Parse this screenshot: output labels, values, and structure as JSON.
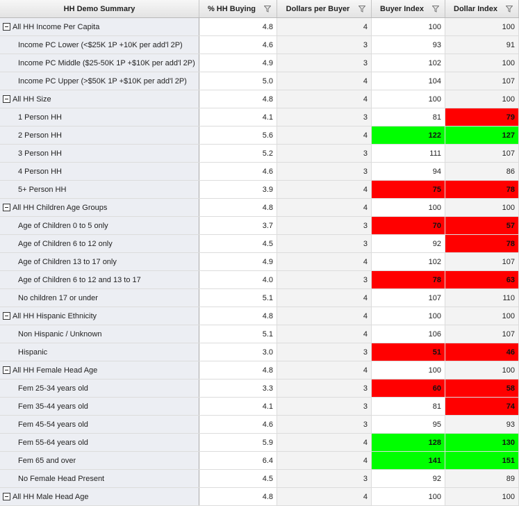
{
  "header": {
    "columns": [
      "HH Demo Summary",
      "% HH Buying",
      "Dollars per Buyer",
      "Buyer Index",
      "Dollar Index"
    ]
  },
  "colors": {
    "low": "#ff0000",
    "high": "#00ff00"
  },
  "rows": [
    {
      "label": "All HH Income Per Capita",
      "group": true,
      "pct": "4.8",
      "dpb": "4",
      "bi": "100",
      "di": "100"
    },
    {
      "label": "Income PC Lower (<$25K 1P +10K per add'l 2P)",
      "group": false,
      "pct": "4.6",
      "dpb": "3",
      "bi": "93",
      "di": "91"
    },
    {
      "label": "Income PC Middle ($25-50K 1P +$10K per add'l 2P)",
      "group": false,
      "pct": "4.9",
      "dpb": "3",
      "bi": "102",
      "di": "100"
    },
    {
      "label": "Income PC Upper (>$50K 1P +$10K per add'l 2P)",
      "group": false,
      "pct": "5.0",
      "dpb": "4",
      "bi": "104",
      "di": "107"
    },
    {
      "label": "All HH Size",
      "group": true,
      "pct": "4.8",
      "dpb": "4",
      "bi": "100",
      "di": "100"
    },
    {
      "label": "1 Person HH",
      "group": false,
      "pct": "4.1",
      "dpb": "3",
      "bi": "81",
      "di": "79",
      "di_flag": "red"
    },
    {
      "label": "2 Person HH",
      "group": false,
      "pct": "5.6",
      "dpb": "4",
      "bi": "122",
      "di": "127",
      "bi_flag": "green",
      "di_flag": "green"
    },
    {
      "label": "3 Person HH",
      "group": false,
      "pct": "5.2",
      "dpb": "3",
      "bi": "111",
      "di": "107"
    },
    {
      "label": "4 Person HH",
      "group": false,
      "pct": "4.6",
      "dpb": "3",
      "bi": "94",
      "di": "86"
    },
    {
      "label": "5+ Person HH",
      "group": false,
      "pct": "3.9",
      "dpb": "4",
      "bi": "75",
      "di": "78",
      "bi_flag": "red",
      "di_flag": "red"
    },
    {
      "label": "All HH Children Age Groups",
      "group": true,
      "pct": "4.8",
      "dpb": "4",
      "bi": "100",
      "di": "100"
    },
    {
      "label": "Age of Children 0 to 5 only",
      "group": false,
      "pct": "3.7",
      "dpb": "3",
      "bi": "70",
      "di": "57",
      "bi_flag": "red",
      "di_flag": "red"
    },
    {
      "label": "Age of Children 6 to 12 only",
      "group": false,
      "pct": "4.5",
      "dpb": "3",
      "bi": "92",
      "di": "78",
      "di_flag": "red"
    },
    {
      "label": "Age of Children 13 to 17 only",
      "group": false,
      "pct": "4.9",
      "dpb": "4",
      "bi": "102",
      "di": "107"
    },
    {
      "label": "Age of Children 6 to 12 and 13 to 17",
      "group": false,
      "pct": "4.0",
      "dpb": "3",
      "bi": "78",
      "di": "63",
      "bi_flag": "red",
      "di_flag": "red"
    },
    {
      "label": "No children 17 or under",
      "group": false,
      "pct": "5.1",
      "dpb": "4",
      "bi": "107",
      "di": "110"
    },
    {
      "label": "All HH Hispanic Ethnicity",
      "group": true,
      "pct": "4.8",
      "dpb": "4",
      "bi": "100",
      "di": "100"
    },
    {
      "label": "Non Hispanic / Unknown",
      "group": false,
      "pct": "5.1",
      "dpb": "4",
      "bi": "106",
      "di": "107"
    },
    {
      "label": "Hispanic",
      "group": false,
      "pct": "3.0",
      "dpb": "3",
      "bi": "51",
      "di": "46",
      "bi_flag": "red",
      "di_flag": "red"
    },
    {
      "label": "All HH Female Head Age",
      "group": true,
      "pct": "4.8",
      "dpb": "4",
      "bi": "100",
      "di": "100"
    },
    {
      "label": "Fem 25-34 years old",
      "group": false,
      "pct": "3.3",
      "dpb": "3",
      "bi": "60",
      "di": "58",
      "bi_flag": "red",
      "di_flag": "red"
    },
    {
      "label": "Fem 35-44 years old",
      "group": false,
      "pct": "4.1",
      "dpb": "3",
      "bi": "81",
      "di": "74",
      "di_flag": "red"
    },
    {
      "label": "Fem 45-54 years old",
      "group": false,
      "pct": "4.6",
      "dpb": "3",
      "bi": "95",
      "di": "93"
    },
    {
      "label": "Fem 55-64 years old",
      "group": false,
      "pct": "5.9",
      "dpb": "4",
      "bi": "128",
      "di": "130",
      "bi_flag": "green",
      "di_flag": "green"
    },
    {
      "label": "Fem 65 and over",
      "group": false,
      "pct": "6.4",
      "dpb": "4",
      "bi": "141",
      "di": "151",
      "bi_flag": "green",
      "di_flag": "green"
    },
    {
      "label": "No Female Head Present",
      "group": false,
      "pct": "4.5",
      "dpb": "3",
      "bi": "92",
      "di": "89"
    },
    {
      "label": "All HH Male Head Age",
      "group": true,
      "pct": "4.8",
      "dpb": "4",
      "bi": "100",
      "di": "100"
    }
  ]
}
